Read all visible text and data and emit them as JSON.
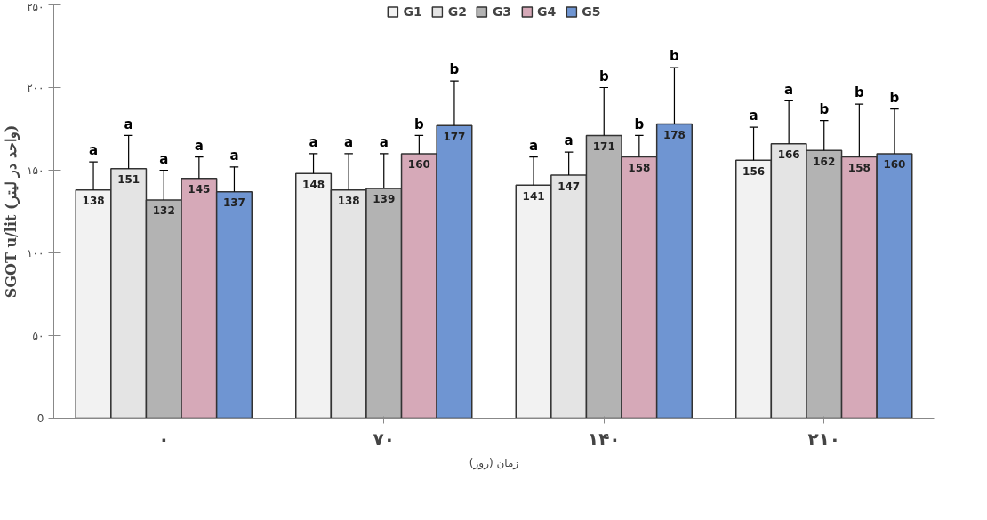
{
  "chart_data": {
    "type": "bar",
    "xlabel": "زمان (روز)",
    "ylabel": "SGOT u/lit (واحد در لیتر)",
    "categories": [
      "۰",
      "۷۰",
      "۱۴۰",
      "۲۱۰"
    ],
    "series": [
      {
        "name": "G1",
        "color": "#f2f2f2",
        "values": [
          138,
          148,
          141,
          156
        ],
        "errors": [
          [
            138,
            155
          ],
          [
            148,
            160
          ],
          [
            141,
            158
          ],
          [
            156,
            176
          ]
        ]
      },
      {
        "name": "G2",
        "color": "#e4e4e4",
        "values": [
          151,
          138,
          147,
          166
        ],
        "errors": [
          [
            151,
            171
          ],
          [
            138,
            160
          ],
          [
            147,
            161
          ],
          [
            166,
            192
          ]
        ]
      },
      {
        "name": "G3",
        "color": "#b3b3b3",
        "values": [
          132,
          139,
          171,
          162
        ],
        "errors": [
          [
            132,
            150
          ],
          [
            139,
            160
          ],
          [
            171,
            200
          ],
          [
            162,
            180
          ]
        ]
      },
      {
        "name": "G4",
        "color": "#d6a9b8",
        "values": [
          145,
          160,
          158,
          158
        ],
        "errors": [
          [
            145,
            158
          ],
          [
            160,
            171
          ],
          [
            158,
            171
          ],
          [
            158,
            190
          ]
        ]
      },
      {
        "name": "G5",
        "color": "#6f95d2",
        "values": [
          137,
          177,
          178,
          160
        ],
        "errors": [
          [
            137,
            152
          ],
          [
            177,
            204
          ],
          [
            178,
            212
          ],
          [
            160,
            187
          ]
        ]
      }
    ],
    "ylim": [
      0,
      250
    ],
    "yticks": [
      0,
      {
        "value": 50,
        "label": "۵۰"
      },
      {
        "value": 100,
        "label": "۱۰۰"
      },
      {
        "value": 150,
        "label": "۱۵۰"
      },
      {
        "value": 200,
        "label": "۲۰۰"
      },
      {
        "value": 250,
        "label": "۲۵۰"
      }
    ],
    "data_labels": true,
    "grid": false,
    "legend": "top",
    "annotations": [
      "a",
      "a",
      "a",
      "a",
      "a",
      "a",
      "a",
      "a",
      "b",
      "b",
      "a",
      "a",
      "b",
      "b",
      "b",
      "a",
      "a",
      "b",
      "b",
      "b"
    ]
  }
}
